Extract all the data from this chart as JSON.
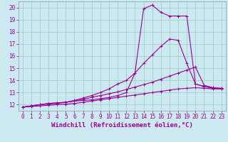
{
  "background_color": "#cce8f0",
  "grid_color": "#99ccbb",
  "line_color": "#990099",
  "spine_color": "#8899aa",
  "xlim": [
    -0.5,
    23.5
  ],
  "ylim": [
    11.5,
    20.5
  ],
  "xlabel": "Windchill (Refroidissement éolien,°C)",
  "xticks": [
    0,
    1,
    2,
    3,
    4,
    5,
    6,
    7,
    8,
    9,
    10,
    11,
    12,
    13,
    14,
    15,
    16,
    17,
    18,
    19,
    20,
    21,
    22,
    23
  ],
  "yticks": [
    12,
    13,
    14,
    15,
    16,
    17,
    18,
    19,
    20
  ],
  "series": [
    [
      11.8,
      11.9,
      12.0,
      12.1,
      12.15,
      12.2,
      12.3,
      12.35,
      12.4,
      12.5,
      12.6,
      12.75,
      13.0,
      14.6,
      19.9,
      20.2,
      19.6,
      19.3,
      19.3,
      19.3,
      13.7,
      13.5,
      13.35,
      13.35
    ],
    [
      11.8,
      11.9,
      12.0,
      12.1,
      12.15,
      12.2,
      12.35,
      12.55,
      12.75,
      13.0,
      13.3,
      13.7,
      14.0,
      14.6,
      15.4,
      16.1,
      16.8,
      17.4,
      17.3,
      15.4,
      13.7,
      13.5,
      13.4,
      13.35
    ],
    [
      11.8,
      11.9,
      12.0,
      12.05,
      12.1,
      12.2,
      12.3,
      12.45,
      12.6,
      12.75,
      12.9,
      13.05,
      13.25,
      13.45,
      13.65,
      13.85,
      14.1,
      14.35,
      14.6,
      14.85,
      15.1,
      13.6,
      13.4,
      13.3
    ],
    [
      11.8,
      11.85,
      11.9,
      11.95,
      12.0,
      12.05,
      12.1,
      12.2,
      12.3,
      12.4,
      12.5,
      12.6,
      12.7,
      12.8,
      12.9,
      13.0,
      13.1,
      13.2,
      13.3,
      13.35,
      13.4,
      13.35,
      13.3,
      13.3
    ]
  ],
  "axis_fontsize": 6.5,
  "tick_fontsize": 5.5,
  "xlabel_fontsize": 6.5
}
